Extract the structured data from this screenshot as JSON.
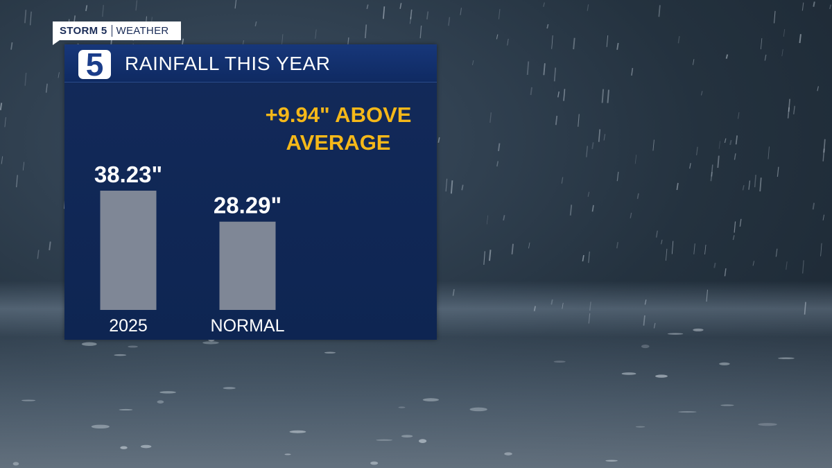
{
  "brand": {
    "name": "STORM 5",
    "sub": "WEATHER"
  },
  "header": {
    "logo": "5",
    "title": "RAINFALL THIS YEAR"
  },
  "annotation": {
    "line1": "+9.94\" ABOVE",
    "line2": "AVERAGE"
  },
  "colors": {
    "panel": "#0e2552",
    "bar": "#7f8796",
    "accent": "#f5b819",
    "text": "#ffffff"
  },
  "chart_data": {
    "type": "bar",
    "categories": [
      "2025",
      "NORMAL"
    ],
    "values": [
      38.23,
      28.29
    ],
    "labels": [
      "38.23\"",
      "28.29\""
    ],
    "title": "RAINFALL THIS YEAR",
    "ylim": [
      0,
      38.23
    ],
    "grid": false
  }
}
